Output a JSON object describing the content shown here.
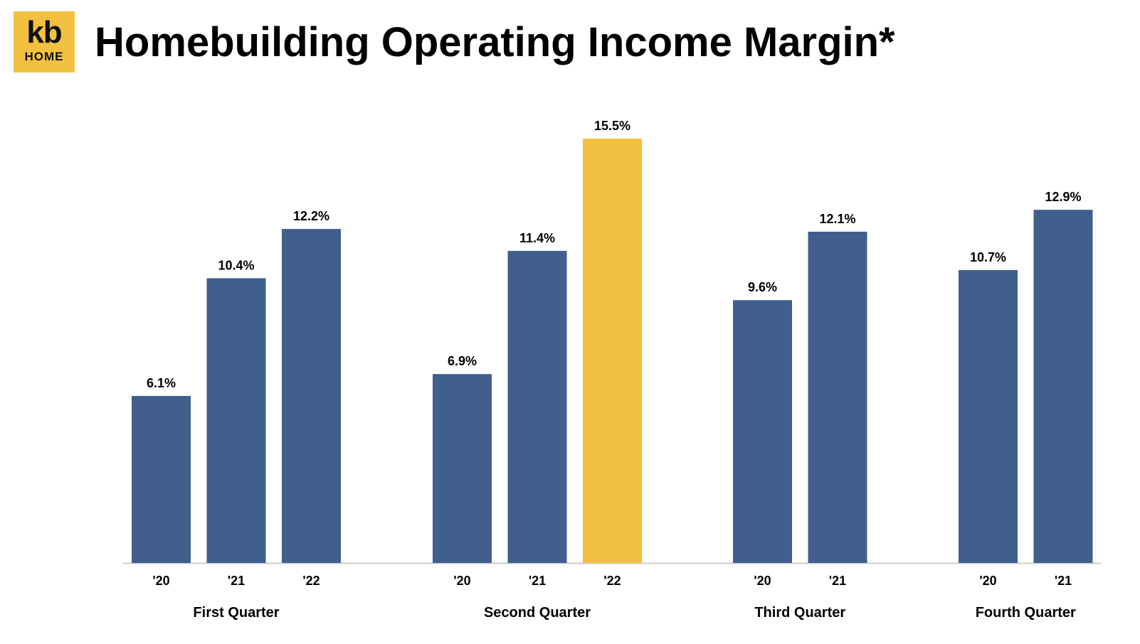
{
  "header": {
    "logo_top": "kb",
    "logo_bottom": "HOME",
    "title": "Homebuilding Operating Income Margin*"
  },
  "colors": {
    "bar": "#405f8d",
    "highlight": "#f2c141",
    "axis": "#cccccc"
  },
  "chart_data": {
    "type": "bar",
    "title": "Homebuilding Operating Income Margin*",
    "ylabel": "",
    "ylim": [
      0,
      15.5
    ],
    "grid": false,
    "groups": [
      {
        "name": "First Quarter",
        "bars": [
          {
            "label": "'20",
            "value": 6.1,
            "text": "6.1%"
          },
          {
            "label": "'21",
            "value": 10.4,
            "text": "10.4%"
          },
          {
            "label": "'22",
            "value": 12.2,
            "text": "12.2%"
          }
        ]
      },
      {
        "name": "Second Quarter",
        "bars": [
          {
            "label": "'20",
            "value": 6.9,
            "text": "6.9%"
          },
          {
            "label": "'21",
            "value": 11.4,
            "text": "11.4%"
          },
          {
            "label": "'22",
            "value": 15.5,
            "text": "15.5%",
            "highlight": true
          }
        ]
      },
      {
        "name": "Third Quarter",
        "bars": [
          {
            "label": "'20",
            "value": 9.6,
            "text": "9.6%"
          },
          {
            "label": "'21",
            "value": 12.1,
            "text": "12.1%"
          }
        ]
      },
      {
        "name": "Fourth Quarter",
        "bars": [
          {
            "label": "'20",
            "value": 10.7,
            "text": "10.7%"
          },
          {
            "label": "'21",
            "value": 12.9,
            "text": "12.9%"
          }
        ]
      }
    ]
  }
}
